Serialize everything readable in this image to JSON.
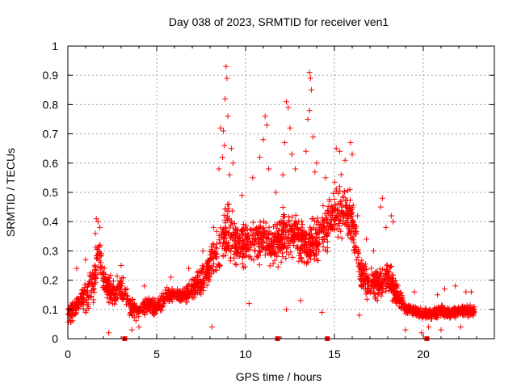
{
  "chart_data": {
    "type": "scatter",
    "title": "Day 038 of 2023, SRMTID for receiver ven1",
    "xlabel": "GPS time / hours",
    "ylabel": "SRMTID / TECUs",
    "xlim": [
      0,
      24
    ],
    "ylim": [
      0,
      1
    ],
    "x_ticks": [
      0,
      5,
      10,
      15,
      20
    ],
    "y_ticks": [
      0,
      0.1,
      0.2,
      0.3,
      0.4,
      0.5,
      0.6,
      0.7,
      0.8,
      0.9,
      1
    ],
    "x_tick_labels": [
      "0",
      "5",
      "10",
      "15",
      "20"
    ],
    "y_tick_labels": [
      "0",
      "0.1",
      "0.2",
      "0.3",
      "0.4",
      "0.5",
      "0.6",
      "0.7",
      "0.8",
      "0.9",
      "1"
    ],
    "grid": true,
    "marker": "plus",
    "color": "#ff0000",
    "x_axis_markers": [
      3.2,
      11.8,
      14.6,
      20.2
    ],
    "envelope": [
      [
        0,
        0.04,
        0.14
      ],
      [
        0.5,
        0.06,
        0.16
      ],
      [
        1.0,
        0.08,
        0.22
      ],
      [
        1.5,
        0.1,
        0.3
      ],
      [
        1.75,
        0.22,
        0.4
      ],
      [
        2.0,
        0.12,
        0.28
      ],
      [
        2.5,
        0.09,
        0.22
      ],
      [
        3.0,
        0.1,
        0.24
      ],
      [
        3.5,
        0.06,
        0.16
      ],
      [
        4.0,
        0.06,
        0.12
      ],
      [
        4.5,
        0.08,
        0.16
      ],
      [
        5.0,
        0.07,
        0.14
      ],
      [
        5.5,
        0.1,
        0.19
      ],
      [
        6.0,
        0.12,
        0.18
      ],
      [
        6.5,
        0.11,
        0.18
      ],
      [
        7.0,
        0.12,
        0.22
      ],
      [
        7.5,
        0.14,
        0.26
      ],
      [
        8.0,
        0.18,
        0.32
      ],
      [
        8.5,
        0.2,
        0.45
      ],
      [
        9.0,
        0.22,
        0.5
      ],
      [
        9.5,
        0.22,
        0.42
      ],
      [
        10.0,
        0.24,
        0.4
      ],
      [
        10.5,
        0.24,
        0.42
      ],
      [
        11.0,
        0.25,
        0.44
      ],
      [
        11.5,
        0.22,
        0.4
      ],
      [
        12.0,
        0.24,
        0.46
      ],
      [
        12.5,
        0.26,
        0.48
      ],
      [
        13.0,
        0.24,
        0.44
      ],
      [
        13.5,
        0.22,
        0.42
      ],
      [
        14.0,
        0.24,
        0.46
      ],
      [
        14.5,
        0.26,
        0.5
      ],
      [
        15.0,
        0.3,
        0.56
      ],
      [
        15.5,
        0.3,
        0.58
      ],
      [
        16.0,
        0.28,
        0.52
      ],
      [
        16.5,
        0.14,
        0.3
      ],
      [
        17.0,
        0.12,
        0.26
      ],
      [
        17.5,
        0.12,
        0.26
      ],
      [
        18.0,
        0.14,
        0.3
      ],
      [
        18.5,
        0.1,
        0.2
      ],
      [
        19.0,
        0.08,
        0.13
      ],
      [
        19.5,
        0.07,
        0.12
      ],
      [
        20.0,
        0.06,
        0.11
      ],
      [
        20.5,
        0.06,
        0.11
      ],
      [
        21.0,
        0.07,
        0.12
      ],
      [
        21.5,
        0.06,
        0.11
      ],
      [
        22.0,
        0.07,
        0.12
      ],
      [
        22.5,
        0.07,
        0.12
      ],
      [
        22.9,
        0.07,
        0.12
      ]
    ],
    "outliers": [
      [
        8.9,
        0.93
      ],
      [
        8.95,
        0.89
      ],
      [
        8.85,
        0.82
      ],
      [
        9.0,
        0.76
      ],
      [
        8.6,
        0.72
      ],
      [
        8.75,
        0.71
      ],
      [
        8.8,
        0.66
      ],
      [
        9.2,
        0.65
      ],
      [
        8.7,
        0.62
      ],
      [
        9.3,
        0.6
      ],
      [
        8.5,
        0.58
      ],
      [
        9.1,
        0.56
      ],
      [
        11.1,
        0.76
      ],
      [
        11.2,
        0.73
      ],
      [
        11.0,
        0.68
      ],
      [
        10.8,
        0.62
      ],
      [
        11.3,
        0.58
      ],
      [
        12.3,
        0.81
      ],
      [
        12.4,
        0.79
      ],
      [
        12.5,
        0.72
      ],
      [
        12.2,
        0.67
      ],
      [
        12.6,
        0.63
      ],
      [
        12.8,
        0.58
      ],
      [
        13.6,
        0.91
      ],
      [
        13.65,
        0.89
      ],
      [
        13.7,
        0.85
      ],
      [
        13.6,
        0.78
      ],
      [
        13.5,
        0.75
      ],
      [
        13.8,
        0.69
      ],
      [
        13.4,
        0.64
      ],
      [
        14.0,
        0.6
      ],
      [
        13.9,
        0.57
      ],
      [
        15.1,
        0.65
      ],
      [
        15.3,
        0.64
      ],
      [
        15.9,
        0.67
      ],
      [
        16.0,
        0.63
      ],
      [
        15.6,
        0.61
      ],
      [
        17.7,
        0.48
      ],
      [
        17.6,
        0.45
      ],
      [
        18.2,
        0.42
      ],
      [
        18.3,
        0.4
      ],
      [
        17.9,
        0.38
      ],
      [
        1.6,
        0.41
      ],
      [
        1.7,
        0.4
      ],
      [
        1.8,
        0.38
      ],
      [
        1.55,
        0.36
      ],
      [
        0.5,
        0.24
      ],
      [
        1.0,
        0.27
      ],
      [
        3.0,
        0.25
      ],
      [
        4.3,
        0.18
      ],
      [
        5.8,
        0.21
      ],
      [
        6.8,
        0.24
      ],
      [
        7.6,
        0.3
      ],
      [
        8.2,
        0.38
      ],
      [
        9.8,
        0.49
      ],
      [
        10.4,
        0.55
      ],
      [
        11.7,
        0.5
      ],
      [
        12.1,
        0.56
      ],
      [
        14.5,
        0.55
      ],
      [
        16.3,
        0.42
      ],
      [
        16.8,
        0.34
      ],
      [
        17.2,
        0.3
      ],
      [
        19.5,
        0.16
      ],
      [
        20.8,
        0.15
      ],
      [
        21.2,
        0.17
      ],
      [
        21.8,
        0.18
      ],
      [
        22.4,
        0.16
      ],
      [
        22.7,
        0.16
      ],
      [
        2.3,
        0.02
      ],
      [
        3.6,
        0.03
      ],
      [
        4.0,
        0.04
      ],
      [
        8.1,
        0.04
      ],
      [
        10.2,
        0.12
      ],
      [
        12.3,
        0.1
      ],
      [
        13.1,
        0.13
      ],
      [
        14.3,
        0.09
      ],
      [
        16.4,
        0.08
      ],
      [
        19.0,
        0.03
      ],
      [
        19.9,
        0.02
      ],
      [
        20.3,
        0.04
      ],
      [
        21.0,
        0.03
      ],
      [
        22.1,
        0.04
      ]
    ],
    "points_per_hour": 110
  }
}
